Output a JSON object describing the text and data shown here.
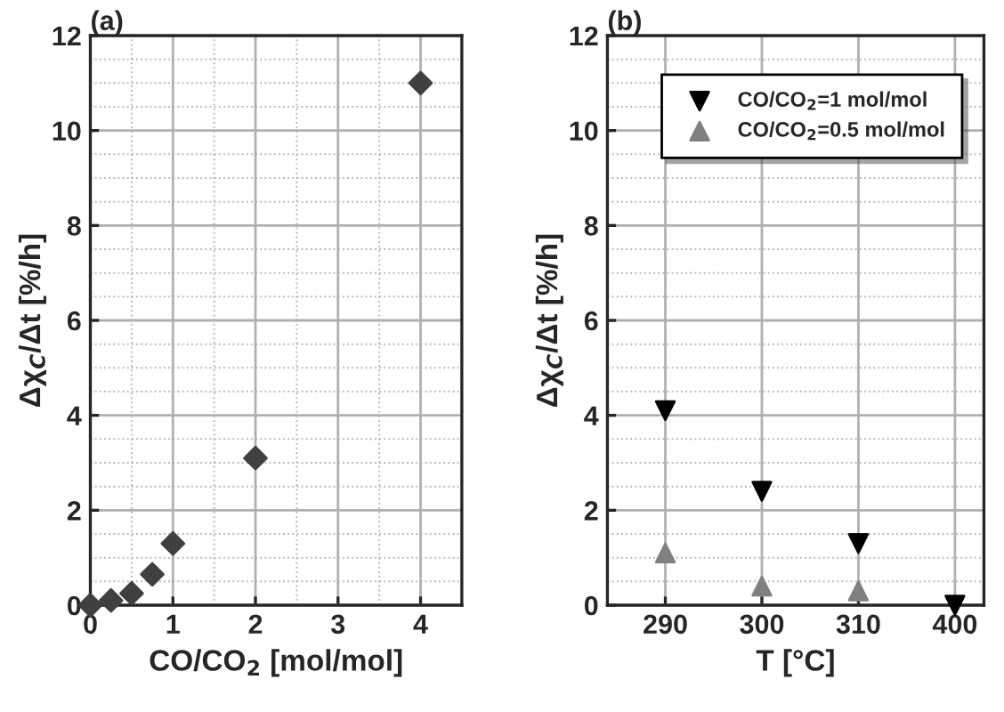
{
  "chart_data": [
    {
      "type": "scatter",
      "title": "(a)",
      "xlabel": "CO/CO$_{2}$ [mol/mol]",
      "ylabel": "Δχ$_{C}$/Δt [%/h]",
      "x": [
        0,
        0.25,
        0.5,
        0.75,
        1,
        2,
        4
      ],
      "series": [
        {
          "color": "#404040",
          "values": [
            0,
            0.1,
            0.25,
            0.65,
            1.3,
            3.1,
            11
          ]
        }
      ],
      "marker": "diamond",
      "xlim": [
        0,
        4.5
      ],
      "xticks": [
        0,
        1,
        2,
        3,
        4
      ],
      "ylim": [
        0,
        12
      ],
      "yticks": [
        0,
        2,
        4,
        6,
        8,
        10,
        12
      ],
      "grid": true
    },
    {
      "type": "scatter",
      "title": "(b)",
      "xlabel": "T [°C]",
      "ylabel": "Δχ$_{C}$/Δt [%/h]",
      "categories": [
        "290",
        "300",
        "310",
        "400"
      ],
      "series": [
        {
          "name": "CO/CO$_{2}$=1 mol/mol",
          "color": "#000000",
          "marker": "triangle_down",
          "values": [
            4.1,
            2.4,
            1.3,
            0
          ]
        },
        {
          "name": "CO/CO$_{2}$=0.5 mol/mol",
          "color": "#808080",
          "marker": "triangle",
          "values": [
            1.1,
            0.4,
            0.3,
            null
          ]
        }
      ],
      "ylim": [
        0,
        12
      ],
      "yticks": [
        0,
        2,
        4,
        6,
        8,
        10,
        12
      ],
      "grid": true,
      "legend": "top right"
    }
  ]
}
